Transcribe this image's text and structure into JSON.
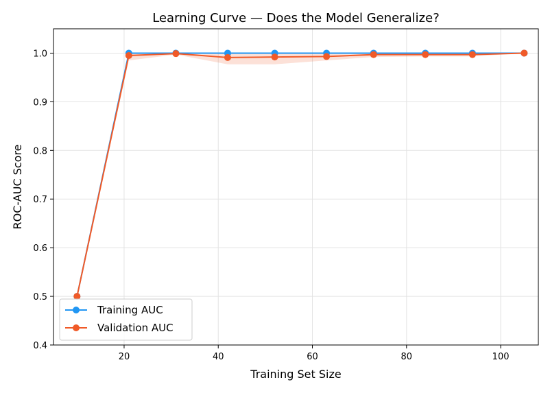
{
  "chart_data": {
    "type": "line",
    "title": "Learning Curve — Does the Model Generalize?",
    "xlabel": "Training Set Size",
    "ylabel": "ROC-AUC Score",
    "xlim": [
      5,
      108
    ],
    "ylim": [
      0.4,
      1.05
    ],
    "xticks": [
      20,
      40,
      60,
      80,
      100
    ],
    "yticks": [
      0.4,
      0.5,
      0.6,
      0.7,
      0.8,
      0.9,
      1.0
    ],
    "xtick_labels": [
      "20",
      "40",
      "60",
      "80",
      "100"
    ],
    "ytick_labels": [
      "0.4",
      "0.5",
      "0.6",
      "0.7",
      "0.8",
      "0.9",
      "1.0"
    ],
    "grid": true,
    "legend_position": "lower-left",
    "series": [
      {
        "name": "Training AUC",
        "color": "#2196F3",
        "x": [
          10,
          21,
          31,
          42,
          52,
          63,
          73,
          84,
          94,
          105
        ],
        "y": [
          0.5,
          1.0,
          1.0,
          1.0,
          1.0,
          1.0,
          1.0,
          1.0,
          1.0,
          1.0
        ],
        "band_low": [
          0.5,
          1.0,
          1.0,
          1.0,
          1.0,
          1.0,
          1.0,
          1.0,
          1.0,
          1.0
        ],
        "band_high": [
          0.5,
          1.0,
          1.0,
          1.0,
          1.0,
          1.0,
          1.0,
          1.0,
          1.0,
          1.0
        ]
      },
      {
        "name": "Validation AUC",
        "color": "#F05A28",
        "x": [
          10,
          21,
          31,
          42,
          52,
          63,
          73,
          84,
          94,
          105
        ],
        "y": [
          0.5,
          0.995,
          0.999,
          0.991,
          0.992,
          0.993,
          0.997,
          0.997,
          0.997,
          1.0
        ],
        "band_low": [
          0.5,
          0.985,
          0.997,
          0.977,
          0.977,
          0.985,
          0.992,
          0.993,
          0.993,
          1.0
        ],
        "band_high": [
          0.5,
          1.0,
          1.0,
          1.0,
          1.0,
          1.0,
          1.0,
          1.0,
          1.0,
          1.0
        ]
      }
    ]
  }
}
